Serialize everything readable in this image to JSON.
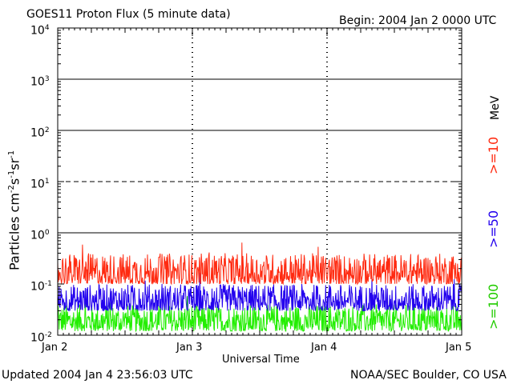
{
  "header": {
    "title": "GOES11 Proton Flux (5 minute data)",
    "begin": "Begin: 2004 Jan 2 0000 UTC"
  },
  "footer": {
    "updated": "Updated 2004 Jan  4 23:56:03 UTC",
    "source": "NOAA/SEC Boulder, CO USA"
  },
  "chart_data": {
    "type": "line",
    "title": "GOES11 Proton Flux (5 minute data)",
    "xlabel": "Universal Time",
    "ylabel": "Particles cm⁻²s⁻¹sr⁻¹",
    "ylabel_parts": {
      "base": "Particles cm",
      "e1": "-2",
      "s": "s",
      "e2": "-1",
      "sr": "sr",
      "e3": "-1"
    },
    "yscale": "log",
    "ylim": [
      0.01,
      10000
    ],
    "y_ticks": [
      {
        "value": 0.01,
        "base": "10",
        "exp": "-2"
      },
      {
        "value": 0.1,
        "base": "10",
        "exp": "-1"
      },
      {
        "value": 1,
        "base": "10",
        "exp": "0"
      },
      {
        "value": 10,
        "base": "10",
        "exp": "1"
      },
      {
        "value": 100,
        "base": "10",
        "exp": "2"
      },
      {
        "value": 1000,
        "base": "10",
        "exp": "3"
      },
      {
        "value": 10000,
        "base": "10",
        "exp": "4"
      }
    ],
    "x_ticks": [
      "Jan 2",
      "Jan 3",
      "Jan 4",
      "Jan 5"
    ],
    "xlim_days": [
      0,
      3
    ],
    "reference_lines": [
      {
        "value": 1000,
        "style": "solid"
      },
      {
        "value": 100,
        "style": "solid"
      },
      {
        "value": 10,
        "style": "dashed"
      },
      {
        "value": 1,
        "style": "solid"
      }
    ],
    "right_axis_label": "MeV",
    "series": [
      {
        "name": ">=10",
        "color": "#ff2a10",
        "typical_range": [
          0.1,
          0.4
        ]
      },
      {
        "name": ">=50",
        "color": "#2200ee",
        "typical_range": [
          0.03,
          0.1
        ]
      },
      {
        "name": ">=100",
        "color": "#22ee00",
        "typical_range": [
          0.012,
          0.04
        ]
      }
    ]
  }
}
